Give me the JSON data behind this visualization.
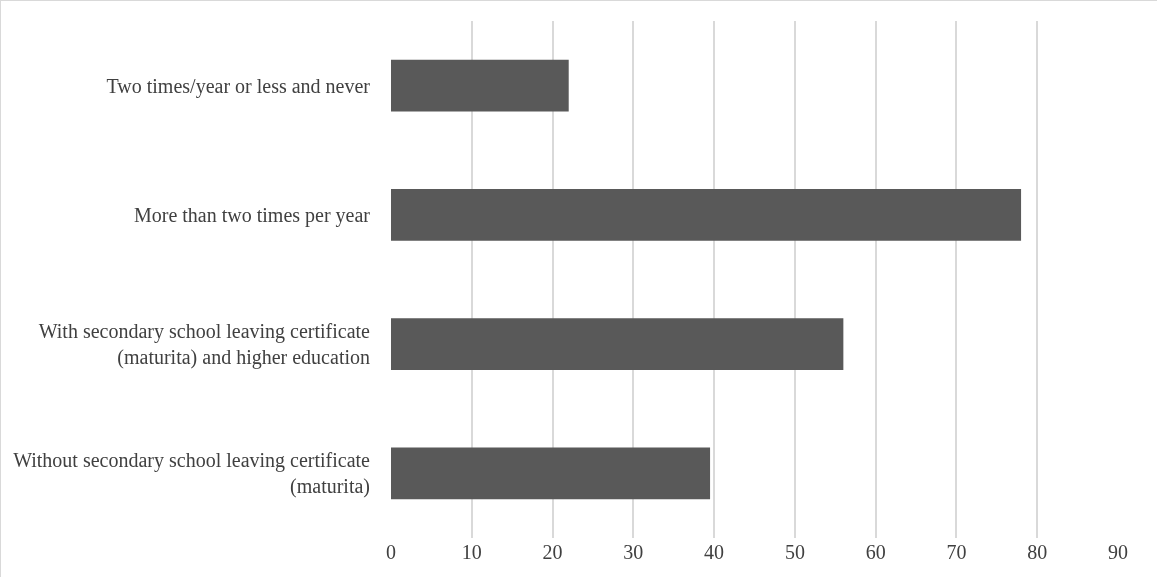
{
  "chart_data": {
    "type": "bar",
    "orientation": "horizontal",
    "categories": [
      "Two times/year or less and never",
      "More than two times per year",
      "With secondary school leaving certificate (maturita) and higher education",
      "Without secondary school leaving certificate (maturita)"
    ],
    "values": [
      22,
      78,
      56,
      39.5
    ],
    "color": "#595959",
    "xlim": [
      0,
      90
    ],
    "xticks": [
      0,
      10,
      20,
      30,
      40,
      50,
      60,
      70,
      80,
      90
    ],
    "grid": "x"
  }
}
